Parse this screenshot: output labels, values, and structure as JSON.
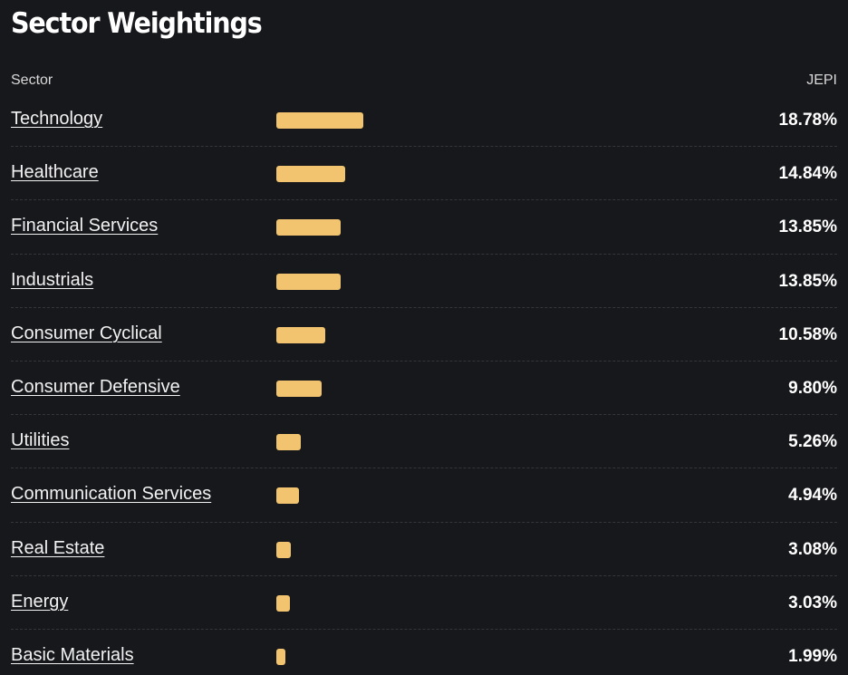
{
  "title": "Sector Weightings",
  "header": {
    "sector_label": "Sector",
    "fund_label": "JEPI"
  },
  "colors": {
    "bar": "#f2c46f",
    "background": "#17181c"
  },
  "sectors": [
    {
      "name": "Technology",
      "value": "18.78%",
      "weight": 18.78
    },
    {
      "name": "Healthcare",
      "value": "14.84%",
      "weight": 14.84
    },
    {
      "name": "Financial Services",
      "value": "13.85%",
      "weight": 13.85
    },
    {
      "name": "Industrials",
      "value": "13.85%",
      "weight": 13.85
    },
    {
      "name": "Consumer Cyclical",
      "value": "10.58%",
      "weight": 10.58
    },
    {
      "name": "Consumer Defensive",
      "value": "9.80%",
      "weight": 9.8
    },
    {
      "name": "Utilities",
      "value": "5.26%",
      "weight": 5.26
    },
    {
      "name": "Communication Services",
      "value": "4.94%",
      "weight": 4.94
    },
    {
      "name": "Real Estate",
      "value": "3.08%",
      "weight": 3.08
    },
    {
      "name": "Energy",
      "value": "3.03%",
      "weight": 3.03
    },
    {
      "name": "Basic Materials",
      "value": "1.99%",
      "weight": 1.99
    }
  ]
}
